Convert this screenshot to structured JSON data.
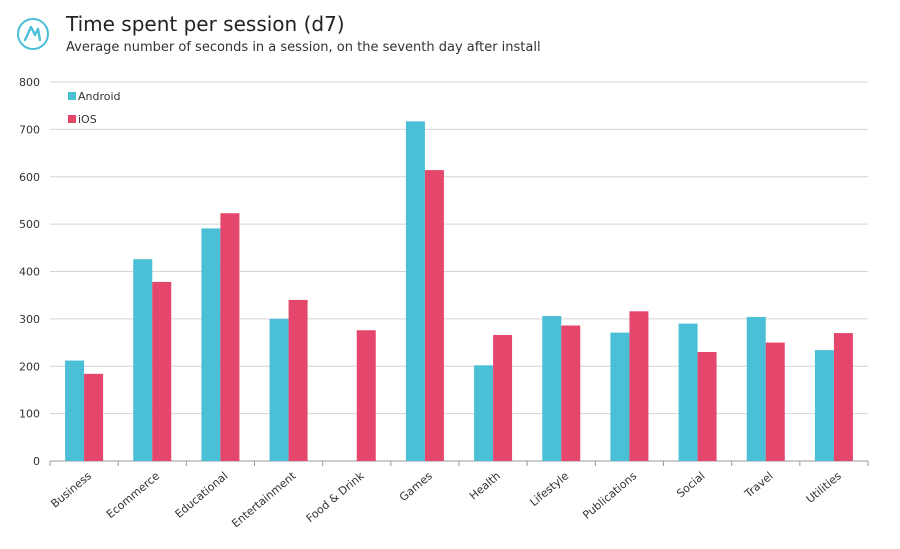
{
  "header": {
    "title": "Time spent per session (d7)",
    "subtitle": "Average number of seconds in a session, on the seventh day after install",
    "logo_icon": "brand-logo-icon"
  },
  "colors": {
    "android": "#4bbfd6",
    "ios": "#e5466b",
    "grid": "#d4d4d4",
    "logo": "#4bbfd6"
  },
  "chart_data": {
    "type": "bar",
    "title": "Time spent per session (d7)",
    "subtitle": "Average number of seconds in a session, on the seventh day after install",
    "xlabel": "",
    "ylabel": "",
    "ylim": [
      0,
      800
    ],
    "yticks": [
      0,
      100,
      200,
      300,
      400,
      500,
      600,
      700,
      800
    ],
    "grid": true,
    "legend": "top-left",
    "categories": [
      "Business",
      "Ecommerce",
      "Educational",
      "Entertainment",
      "Food & Drink",
      "Games",
      "Health",
      "Lifestyle",
      "Publications",
      "Social",
      "Travel",
      "Utilities"
    ],
    "series": [
      {
        "name": "Android",
        "color": "#4bbfd6",
        "values": [
          212,
          426,
          491,
          300,
          null,
          717,
          202,
          306,
          271,
          290,
          304,
          234
        ]
      },
      {
        "name": "iOS",
        "color": "#e5466b",
        "values": [
          184,
          378,
          523,
          340,
          276,
          614,
          266,
          286,
          316,
          230,
          250,
          270
        ]
      }
    ]
  }
}
